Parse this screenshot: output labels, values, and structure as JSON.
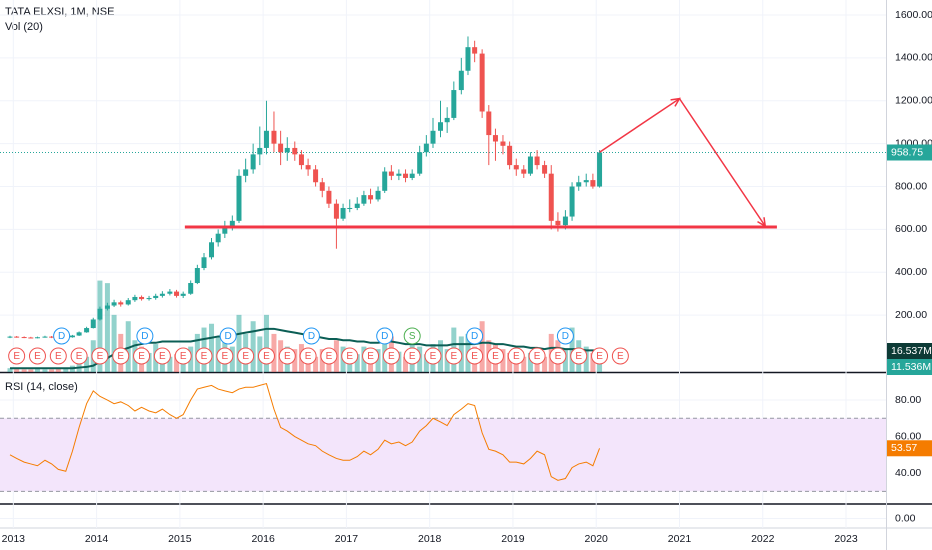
{
  "chart_data": {
    "type": "candlestick",
    "title": "TATA ELXSI, 1M, NSE",
    "x": [
      2012.96,
      2013.04,
      2013.13,
      2013.21,
      2013.29,
      2013.38,
      2013.46,
      2013.54,
      2013.63,
      2013.71,
      2013.79,
      2013.88,
      2013.96,
      2014.04,
      2014.13,
      2014.21,
      2014.29,
      2014.38,
      2014.46,
      2014.54,
      2014.63,
      2014.71,
      2014.79,
      2014.88,
      2014.96,
      2015.04,
      2015.13,
      2015.21,
      2015.29,
      2015.38,
      2015.46,
      2015.54,
      2015.63,
      2015.71,
      2015.79,
      2015.88,
      2015.96,
      2016.04,
      2016.13,
      2016.21,
      2016.29,
      2016.38,
      2016.46,
      2016.54,
      2016.63,
      2016.71,
      2016.79,
      2016.88,
      2016.96,
      2017.04,
      2017.13,
      2017.21,
      2017.29,
      2017.38,
      2017.46,
      2017.54,
      2017.63,
      2017.71,
      2017.79,
      2017.88,
      2017.96,
      2018.04,
      2018.13,
      2018.21,
      2018.29,
      2018.38,
      2018.46,
      2018.54,
      2018.63,
      2018.71,
      2018.79,
      2018.88,
      2018.96,
      2019.04,
      2019.13,
      2019.21,
      2019.29,
      2019.38,
      2019.46,
      2019.54,
      2019.63,
      2019.71,
      2019.79,
      2019.88,
      2019.96,
      2020.04
    ],
    "open": [
      96,
      100,
      98,
      96,
      95,
      97,
      100,
      96,
      94,
      97,
      105,
      120,
      140,
      180,
      230,
      245,
      260,
      250,
      270,
      285,
      275,
      280,
      290,
      300,
      310,
      290,
      300,
      350,
      420,
      470,
      540,
      580,
      610,
      640,
      850,
      880,
      950,
      980,
      1060,
      1000,
      960,
      980,
      950,
      900,
      880,
      820,
      780,
      720,
      650,
      700,
      700,
      720,
      760,
      740,
      780,
      870,
      850,
      860,
      840,
      860,
      960,
      1000,
      1060,
      1100,
      1120,
      1250,
      1340,
      1450,
      1420,
      1150,
      1040,
      1010,
      990,
      900,
      880,
      860,
      940,
      900,
      860,
      640,
      620,
      660,
      800,
      820,
      830,
      800
    ],
    "high": [
      104,
      103,
      101,
      99,
      100,
      104,
      103,
      99,
      100,
      108,
      124,
      146,
      188,
      240,
      258,
      272,
      268,
      280,
      295,
      292,
      290,
      300,
      312,
      322,
      318,
      310,
      362,
      435,
      490,
      560,
      600,
      640,
      665,
      880,
      930,
      1000,
      1080,
      1200,
      1150,
      1060,
      1030,
      1010,
      970,
      930,
      900,
      840,
      800,
      740,
      720,
      740,
      750,
      780,
      790,
      800,
      890,
      900,
      880,
      880,
      880,
      990,
      1040,
      1120,
      1200,
      1170,
      1290,
      1400,
      1500,
      1480,
      1440,
      1180,
      1070,
      1040,
      1010,
      930,
      900,
      960,
      970,
      920,
      900,
      680,
      690,
      820,
      850,
      860,
      860,
      970
    ],
    "low": [
      93,
      95,
      93,
      92,
      92,
      95,
      93,
      90,
      91,
      95,
      103,
      118,
      138,
      175,
      222,
      238,
      240,
      245,
      262,
      268,
      268,
      272,
      282,
      292,
      282,
      280,
      295,
      345,
      410,
      460,
      520,
      560,
      595,
      630,
      820,
      860,
      900,
      950,
      960,
      900,
      920,
      920,
      880,
      850,
      800,
      750,
      700,
      510,
      640,
      680,
      690,
      710,
      720,
      730,
      770,
      830,
      830,
      820,
      830,
      850,
      940,
      980,
      1030,
      1050,
      1110,
      1230,
      1320,
      1380,
      1120,
      900,
      920,
      950,
      880,
      850,
      840,
      850,
      880,
      840,
      600,
      590,
      600,
      640,
      780,
      800,
      790,
      795
    ],
    "close": [
      100,
      98,
      96,
      95,
      97,
      100,
      96,
      94,
      97,
      105,
      120,
      140,
      180,
      230,
      245,
      260,
      250,
      270,
      285,
      275,
      280,
      290,
      300,
      310,
      290,
      300,
      350,
      420,
      470,
      540,
      580,
      610,
      640,
      850,
      880,
      950,
      980,
      1060,
      1000,
      960,
      980,
      950,
      900,
      880,
      820,
      780,
      720,
      650,
      700,
      700,
      720,
      760,
      740,
      780,
      870,
      850,
      860,
      840,
      860,
      960,
      1000,
      1060,
      1100,
      1120,
      1250,
      1340,
      1450,
      1420,
      1150,
      1040,
      1010,
      990,
      900,
      880,
      860,
      940,
      900,
      860,
      640,
      620,
      660,
      800,
      820,
      830,
      800,
      958.75
    ],
    "colors": {
      "up": "#26a69a",
      "down": "#ef5350"
    },
    "xlim": [
      2012.84,
      2023.48
    ],
    "xticks": [
      2013,
      2014,
      2015,
      2016,
      2017,
      2018,
      2019,
      2020,
      2021,
      2022,
      2023
    ],
    "ylim": [
      -65,
      1670
    ],
    "yticks": [
      {
        "value": 200,
        "label": "200.00"
      },
      {
        "value": 400,
        "label": "400.00"
      },
      {
        "value": 600,
        "label": "600.00"
      },
      {
        "value": 800,
        "label": "800.00"
      },
      {
        "value": 1000,
        "label": "1000.00"
      },
      {
        "value": 1200,
        "label": "1200.00"
      },
      {
        "value": 1400,
        "label": "1400.00"
      },
      {
        "value": 1600,
        "label": "1600.00"
      }
    ],
    "volume": {
      "name": "Vol (20)",
      "ylim": [
        0,
        293
      ],
      "values": [
        3,
        3,
        2,
        2,
        3,
        2,
        2,
        3,
        3,
        5,
        8,
        12,
        25,
        72,
        70,
        45,
        30,
        40,
        25,
        20,
        15,
        22,
        18,
        12,
        14,
        15,
        20,
        30,
        35,
        38,
        28,
        25,
        20,
        45,
        30,
        40,
        28,
        45,
        30,
        25,
        20,
        18,
        22,
        15,
        12,
        18,
        15,
        25,
        20,
        12,
        14,
        20,
        15,
        18,
        35,
        28,
        16,
        12,
        30,
        20,
        14,
        22,
        25,
        18,
        35,
        28,
        30,
        20,
        40,
        25,
        22,
        18,
        15,
        14,
        12,
        15,
        10,
        12,
        30,
        25,
        18,
        35,
        25,
        20,
        15,
        11.536
      ],
      "last_label": "11.536M",
      "ma": [
        3,
        3,
        3,
        3,
        3,
        3,
        3,
        3,
        3,
        3,
        3.5,
        4,
        5,
        8,
        11,
        14,
        17,
        19,
        21,
        22,
        23,
        23,
        24,
        24,
        24,
        24,
        24,
        25,
        26,
        27,
        28,
        28,
        29,
        30,
        31,
        32,
        33,
        34,
        34,
        33,
        32,
        31,
        30,
        29,
        28,
        27,
        26,
        26,
        25,
        25,
        24,
        24,
        23,
        23,
        24,
        24,
        23,
        22,
        22,
        22,
        21,
        21,
        21,
        21,
        22,
        22,
        22,
        22,
        23,
        23,
        22,
        22,
        21,
        20,
        20,
        19,
        19,
        18,
        19,
        19,
        18,
        18,
        18,
        17,
        17,
        16.537
      ],
      "ma_last_label": "16.537M",
      "ma_color": "#0b5e55"
    },
    "rsi": {
      "name": "RSI (14, close)",
      "color": "#f57c00",
      "ylim": [
        23.6,
        93.7
      ],
      "yticks": [
        {
          "value": 40,
          "label": "40.00"
        },
        {
          "value": 60,
          "label": "60.00"
        },
        {
          "value": 80,
          "label": "80.00"
        }
      ],
      "band": [
        30,
        70
      ],
      "values": [
        50,
        48,
        46,
        45,
        44,
        47,
        45,
        42,
        41,
        52,
        65,
        78,
        85,
        82,
        80,
        78,
        79,
        77,
        74,
        76,
        74,
        73,
        75,
        72,
        70,
        72,
        80,
        86,
        87,
        88,
        86,
        85,
        84,
        86,
        87,
        87,
        88,
        89,
        75,
        65,
        63,
        60,
        58,
        56,
        55,
        52,
        50,
        48,
        47,
        47,
        49,
        52,
        50,
        53,
        58,
        56,
        57,
        55,
        57,
        63,
        66,
        70,
        68,
        66,
        72,
        75,
        78,
        77,
        62,
        53,
        52,
        50,
        46,
        46,
        45,
        48,
        52,
        50,
        38,
        36,
        37,
        43,
        45,
        46,
        44,
        53.57
      ]
    },
    "pane3": {
      "ylim": [
        -0.7,
        1
      ],
      "yticks": [
        {
          "value": 0,
          "label": "0.00"
        }
      ]
    },
    "events": {
      "earnings": {
        "label": "E",
        "x": [
          2013.04,
          2013.29,
          2013.54,
          2013.79,
          2014.04,
          2014.29,
          2014.54,
          2014.79,
          2015.04,
          2015.29,
          2015.54,
          2015.79,
          2016.04,
          2016.29,
          2016.54,
          2016.79,
          2017.04,
          2017.29,
          2017.54,
          2017.79,
          2018.04,
          2018.29,
          2018.54,
          2018.79,
          2019.04,
          2019.29,
          2019.54,
          2019.79,
          2020.04,
          2020.29
        ]
      },
      "dividends": {
        "label": "D",
        "x": [
          2013.58,
          2014.58,
          2015.58,
          2016.58,
          2017.46,
          2018.54,
          2019.63
        ]
      },
      "splits": {
        "label": "S",
        "x": [
          2017.79
        ]
      }
    },
    "drawings": {
      "color": "#f23645",
      "support": {
        "x": [
          2015.06,
          2022.17
        ],
        "y": 611
      },
      "arrow": {
        "x": [
          2020.04,
          2021.0,
          2022.03
        ],
        "y": [
          960,
          1210,
          615
        ]
      }
    }
  }
}
